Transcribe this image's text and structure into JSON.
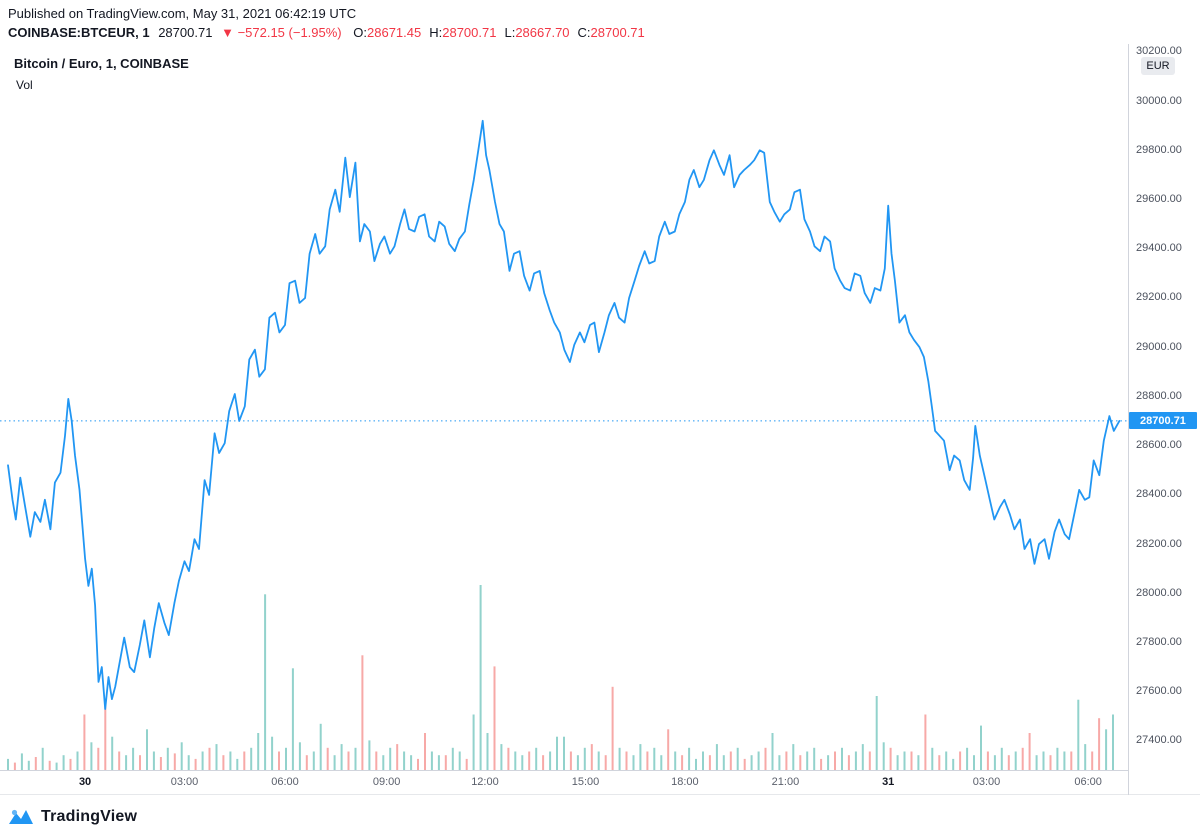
{
  "header": {
    "published": "Published on TradingView.com, May 31, 2021 06:42:19 UTC",
    "symbol": "COINBASE:BTCEUR, 1",
    "last": "28700.71",
    "direction": "▼",
    "change": "−572.15 (−1.95%)",
    "ohlc": [
      {
        "label": "O:",
        "value": "28671.45"
      },
      {
        "label": "H:",
        "value": "28700.71"
      },
      {
        "label": "L:",
        "value": "28667.70"
      },
      {
        "label": "C:",
        "value": "28700.71"
      }
    ]
  },
  "overlay": {
    "title": "Bitcoin / Euro, 1, COINBASE",
    "vol_label": "Vol"
  },
  "axis": {
    "currency": "EUR",
    "price_label": "28700.71"
  },
  "footer": {
    "brand": "TradingView"
  },
  "chart_data": {
    "type": "line",
    "title": "Bitcoin / Euro, 1, COINBASE",
    "symbol": "COINBASE:BTCEUR",
    "interval": "1",
    "currency": "EUR",
    "last_price": 28700.71,
    "change": -572.15,
    "change_pct": -1.95,
    "open": 28671.45,
    "high": 28700.71,
    "low": 28667.7,
    "close": 28700.71,
    "legend_position": "top-left",
    "grid": false,
    "ylim": [
      27282,
      30232
    ],
    "y_ticks": [
      30200,
      30000,
      29800,
      29600,
      29400,
      29200,
      29000,
      28800,
      28600,
      28400,
      28200,
      28000,
      27800,
      27600,
      27400
    ],
    "x_ticks": [
      {
        "label": "30",
        "f": 0.069,
        "major": true
      },
      {
        "label": "03:00",
        "f": 0.158
      },
      {
        "label": "06:00",
        "f": 0.248
      },
      {
        "label": "09:00",
        "f": 0.339
      },
      {
        "label": "12:00",
        "f": 0.427
      },
      {
        "label": "15:00",
        "f": 0.517
      },
      {
        "label": "18:00",
        "f": 0.606
      },
      {
        "label": "21:00",
        "f": 0.696
      },
      {
        "label": "31",
        "f": 0.788,
        "major": true
      },
      {
        "label": "03:00",
        "f": 0.876
      },
      {
        "label": "06:00",
        "f": 0.967
      }
    ],
    "points": [
      [
        0.0,
        28520
      ],
      [
        0.004,
        28380
      ],
      [
        0.007,
        28300
      ],
      [
        0.011,
        28470
      ],
      [
        0.015,
        28360
      ],
      [
        0.02,
        28230
      ],
      [
        0.024,
        28330
      ],
      [
        0.029,
        28290
      ],
      [
        0.033,
        28380
      ],
      [
        0.038,
        28260
      ],
      [
        0.042,
        28450
      ],
      [
        0.047,
        28490
      ],
      [
        0.051,
        28640
      ],
      [
        0.054,
        28790
      ],
      [
        0.057,
        28700
      ],
      [
        0.06,
        28560
      ],
      [
        0.064,
        28420
      ],
      [
        0.069,
        28140
      ],
      [
        0.072,
        28030
      ],
      [
        0.075,
        28100
      ],
      [
        0.078,
        27950
      ],
      [
        0.081,
        27640
      ],
      [
        0.084,
        27700
      ],
      [
        0.087,
        27530
      ],
      [
        0.09,
        27660
      ],
      [
        0.093,
        27570
      ],
      [
        0.096,
        27620
      ],
      [
        0.1,
        27720
      ],
      [
        0.104,
        27820
      ],
      [
        0.109,
        27700
      ],
      [
        0.113,
        27680
      ],
      [
        0.118,
        27790
      ],
      [
        0.122,
        27890
      ],
      [
        0.127,
        27740
      ],
      [
        0.131,
        27860
      ],
      [
        0.135,
        27960
      ],
      [
        0.14,
        27880
      ],
      [
        0.144,
        27830
      ],
      [
        0.149,
        27960
      ],
      [
        0.153,
        28050
      ],
      [
        0.158,
        28130
      ],
      [
        0.162,
        28090
      ],
      [
        0.167,
        28220
      ],
      [
        0.171,
        28180
      ],
      [
        0.176,
        28460
      ],
      [
        0.18,
        28400
      ],
      [
        0.185,
        28650
      ],
      [
        0.189,
        28570
      ],
      [
        0.194,
        28610
      ],
      [
        0.198,
        28740
      ],
      [
        0.203,
        28810
      ],
      [
        0.207,
        28700
      ],
      [
        0.212,
        28760
      ],
      [
        0.216,
        28950
      ],
      [
        0.221,
        28990
      ],
      [
        0.225,
        28880
      ],
      [
        0.23,
        28910
      ],
      [
        0.234,
        29120
      ],
      [
        0.239,
        29140
      ],
      [
        0.243,
        29060
      ],
      [
        0.248,
        29090
      ],
      [
        0.252,
        29260
      ],
      [
        0.257,
        29270
      ],
      [
        0.261,
        29180
      ],
      [
        0.266,
        29200
      ],
      [
        0.27,
        29380
      ],
      [
        0.275,
        29460
      ],
      [
        0.279,
        29380
      ],
      [
        0.284,
        29410
      ],
      [
        0.288,
        29560
      ],
      [
        0.293,
        29640
      ],
      [
        0.297,
        29550
      ],
      [
        0.302,
        29770
      ],
      [
        0.306,
        29610
      ],
      [
        0.311,
        29750
      ],
      [
        0.315,
        29430
      ],
      [
        0.319,
        29500
      ],
      [
        0.324,
        29470
      ],
      [
        0.328,
        29350
      ],
      [
        0.333,
        29420
      ],
      [
        0.337,
        29450
      ],
      [
        0.342,
        29380
      ],
      [
        0.346,
        29410
      ],
      [
        0.351,
        29500
      ],
      [
        0.355,
        29560
      ],
      [
        0.359,
        29480
      ],
      [
        0.364,
        29470
      ],
      [
        0.368,
        29530
      ],
      [
        0.373,
        29540
      ],
      [
        0.377,
        29450
      ],
      [
        0.382,
        29430
      ],
      [
        0.386,
        29510
      ],
      [
        0.391,
        29490
      ],
      [
        0.395,
        29420
      ],
      [
        0.4,
        29390
      ],
      [
        0.404,
        29440
      ],
      [
        0.409,
        29470
      ],
      [
        0.413,
        29580
      ],
      [
        0.417,
        29680
      ],
      [
        0.421,
        29800
      ],
      [
        0.425,
        29920
      ],
      [
        0.428,
        29780
      ],
      [
        0.431,
        29720
      ],
      [
        0.436,
        29590
      ],
      [
        0.44,
        29500
      ],
      [
        0.444,
        29470
      ],
      [
        0.449,
        29310
      ],
      [
        0.453,
        29380
      ],
      [
        0.458,
        29390
      ],
      [
        0.462,
        29290
      ],
      [
        0.467,
        29230
      ],
      [
        0.471,
        29300
      ],
      [
        0.476,
        29310
      ],
      [
        0.48,
        29220
      ],
      [
        0.485,
        29150
      ],
      [
        0.489,
        29100
      ],
      [
        0.494,
        29060
      ],
      [
        0.498,
        28990
      ],
      [
        0.503,
        28940
      ],
      [
        0.507,
        29010
      ],
      [
        0.512,
        29060
      ],
      [
        0.516,
        29020
      ],
      [
        0.521,
        29090
      ],
      [
        0.525,
        29100
      ],
      [
        0.529,
        28980
      ],
      [
        0.534,
        29060
      ],
      [
        0.538,
        29130
      ],
      [
        0.543,
        29180
      ],
      [
        0.547,
        29120
      ],
      [
        0.552,
        29100
      ],
      [
        0.556,
        29200
      ],
      [
        0.561,
        29270
      ],
      [
        0.565,
        29330
      ],
      [
        0.57,
        29390
      ],
      [
        0.574,
        29340
      ],
      [
        0.579,
        29350
      ],
      [
        0.583,
        29450
      ],
      [
        0.588,
        29510
      ],
      [
        0.592,
        29460
      ],
      [
        0.597,
        29470
      ],
      [
        0.601,
        29540
      ],
      [
        0.606,
        29590
      ],
      [
        0.61,
        29680
      ],
      [
        0.614,
        29720
      ],
      [
        0.619,
        29650
      ],
      [
        0.623,
        29680
      ],
      [
        0.628,
        29760
      ],
      [
        0.632,
        29800
      ],
      [
        0.637,
        29740
      ],
      [
        0.641,
        29700
      ],
      [
        0.646,
        29780
      ],
      [
        0.65,
        29650
      ],
      [
        0.655,
        29700
      ],
      [
        0.659,
        29720
      ],
      [
        0.664,
        29740
      ],
      [
        0.668,
        29760
      ],
      [
        0.673,
        29800
      ],
      [
        0.677,
        29790
      ],
      [
        0.682,
        29590
      ],
      [
        0.686,
        29550
      ],
      [
        0.691,
        29510
      ],
      [
        0.695,
        29540
      ],
      [
        0.7,
        29560
      ],
      [
        0.704,
        29630
      ],
      [
        0.709,
        29640
      ],
      [
        0.713,
        29520
      ],
      [
        0.718,
        29470
      ],
      [
        0.722,
        29410
      ],
      [
        0.727,
        29390
      ],
      [
        0.731,
        29450
      ],
      [
        0.736,
        29430
      ],
      [
        0.74,
        29320
      ],
      [
        0.745,
        29270
      ],
      [
        0.749,
        29240
      ],
      [
        0.754,
        29230
      ],
      [
        0.758,
        29300
      ],
      [
        0.763,
        29290
      ],
      [
        0.767,
        29220
      ],
      [
        0.772,
        29180
      ],
      [
        0.776,
        29240
      ],
      [
        0.781,
        29230
      ],
      [
        0.785,
        29320
      ],
      [
        0.788,
        29575
      ],
      [
        0.791,
        29380
      ],
      [
        0.794,
        29270
      ],
      [
        0.798,
        29100
      ],
      [
        0.803,
        29130
      ],
      [
        0.807,
        29060
      ],
      [
        0.811,
        29030
      ],
      [
        0.816,
        29000
      ],
      [
        0.82,
        28960
      ],
      [
        0.824,
        28860
      ],
      [
        0.827,
        28760
      ],
      [
        0.83,
        28660
      ],
      [
        0.834,
        28640
      ],
      [
        0.838,
        28620
      ],
      [
        0.843,
        28500
      ],
      [
        0.847,
        28560
      ],
      [
        0.852,
        28540
      ],
      [
        0.856,
        28460
      ],
      [
        0.861,
        28420
      ],
      [
        0.864,
        28550
      ],
      [
        0.866,
        28680
      ],
      [
        0.87,
        28560
      ],
      [
        0.875,
        28460
      ],
      [
        0.879,
        28380
      ],
      [
        0.883,
        28300
      ],
      [
        0.888,
        28350
      ],
      [
        0.892,
        28380
      ],
      [
        0.897,
        28320
      ],
      [
        0.901,
        28260
      ],
      [
        0.906,
        28300
      ],
      [
        0.91,
        28180
      ],
      [
        0.915,
        28220
      ],
      [
        0.919,
        28120
      ],
      [
        0.923,
        28200
      ],
      [
        0.928,
        28220
      ],
      [
        0.932,
        28140
      ],
      [
        0.937,
        28250
      ],
      [
        0.941,
        28300
      ],
      [
        0.946,
        28240
      ],
      [
        0.95,
        28220
      ],
      [
        0.955,
        28330
      ],
      [
        0.959,
        28420
      ],
      [
        0.964,
        28380
      ],
      [
        0.968,
        28390
      ],
      [
        0.972,
        28540
      ],
      [
        0.977,
        28480
      ],
      [
        0.981,
        28620
      ],
      [
        0.986,
        28720
      ],
      [
        0.99,
        28660
      ],
      [
        0.995,
        28700.71
      ]
    ],
    "volume": [
      0.06,
      -0.04,
      0.09,
      0.05,
      -0.07,
      0.12,
      -0.05,
      0.04,
      0.08,
      -0.06,
      0.1,
      -0.3,
      0.15,
      -0.12,
      -0.35,
      0.18,
      -0.1,
      0.08,
      0.12,
      -0.08,
      0.22,
      0.1,
      -0.07,
      0.12,
      -0.09,
      0.15,
      0.08,
      -0.06,
      0.1,
      -0.12,
      0.14,
      -0.08,
      0.1,
      0.06,
      -0.1,
      0.12,
      0.2,
      0.95,
      0.18,
      -0.1,
      0.12,
      0.55,
      0.15,
      -0.08,
      0.1,
      0.25,
      -0.12,
      0.08,
      0.14,
      -0.1,
      0.12,
      -0.62,
      0.16,
      -0.1,
      0.08,
      0.12,
      -0.14,
      0.1,
      0.08,
      -0.06,
      -0.2,
      0.1,
      0.08,
      -0.08,
      0.12,
      0.1,
      -0.06,
      0.3,
      1.0,
      0.2,
      -0.56,
      0.14,
      -0.12,
      0.1,
      0.08,
      -0.1,
      0.12,
      -0.08,
      0.1,
      0.18,
      0.18,
      -0.1,
      0.08,
      0.12,
      -0.14,
      0.1,
      -0.08,
      -0.45,
      0.12,
      -0.1,
      0.08,
      0.14,
      -0.1,
      0.12,
      0.08,
      -0.22,
      0.1,
      -0.08,
      0.12,
      0.06,
      0.1,
      -0.08,
      0.14,
      0.08,
      -0.1,
      0.12,
      -0.06,
      0.08,
      0.1,
      -0.12,
      0.2,
      0.08,
      -0.1,
      0.14,
      -0.08,
      0.1,
      0.12,
      -0.06,
      0.08,
      -0.1,
      0.12,
      -0.08,
      0.1,
      0.14,
      -0.1,
      0.4,
      0.15,
      -0.12,
      0.08,
      0.1,
      -0.1,
      0.08,
      -0.3,
      0.12,
      -0.08,
      0.1,
      0.06,
      -0.1,
      0.12,
      0.08,
      0.24,
      -0.1,
      0.08,
      0.12,
      -0.08,
      0.1,
      -0.12,
      -0.2,
      0.08,
      0.1,
      -0.08,
      0.12,
      0.1,
      -0.1,
      0.38,
      0.14,
      -0.1,
      -0.28,
      0.22,
      0.3
    ],
    "colors": {
      "line": "#2196f3",
      "price_label_bg": "#2196f3",
      "vol_up": "#26a69a",
      "vol_down": "#ef5350",
      "down_text": "#f23645"
    }
  }
}
